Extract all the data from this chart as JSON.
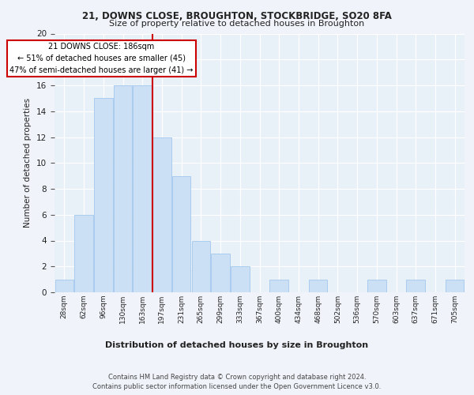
{
  "title1": "21, DOWNS CLOSE, BROUGHTON, STOCKBRIDGE, SO20 8FA",
  "title2": "Size of property relative to detached houses in Broughton",
  "xlabel": "Distribution of detached houses by size in Broughton",
  "ylabel": "Number of detached properties",
  "bar_labels": [
    "28sqm",
    "62sqm",
    "96sqm",
    "130sqm",
    "163sqm",
    "197sqm",
    "231sqm",
    "265sqm",
    "299sqm",
    "333sqm",
    "367sqm",
    "400sqm",
    "434sqm",
    "468sqm",
    "502sqm",
    "536sqm",
    "570sqm",
    "603sqm",
    "637sqm",
    "671sqm",
    "705sqm"
  ],
  "bar_values": [
    1,
    6,
    15,
    16,
    16,
    12,
    9,
    4,
    3,
    2,
    0,
    1,
    0,
    1,
    0,
    0,
    1,
    0,
    1,
    0,
    1
  ],
  "bar_color": "#cce0f5",
  "bar_edge_color": "#aaccee",
  "property_line_x": 4.5,
  "annotation_line1": "21 DOWNS CLOSE: 186sqm",
  "annotation_line2": "← 51% of detached houses are smaller (45)",
  "annotation_line3": "47% of semi-detached houses are larger (41) →",
  "vline_color": "#cc0000",
  "annotation_box_color": "#ffffff",
  "annotation_box_edge": "#cc0000",
  "footer1": "Contains HM Land Registry data © Crown copyright and database right 2024.",
  "footer2": "Contains public sector information licensed under the Open Government Licence v3.0.",
  "ylim": [
    0,
    20
  ],
  "yticks": [
    0,
    2,
    4,
    6,
    8,
    10,
    12,
    14,
    16,
    18,
    20
  ],
  "fig_bg_color": "#f0f4fa",
  "plot_bg_color": "#e8f0f8"
}
